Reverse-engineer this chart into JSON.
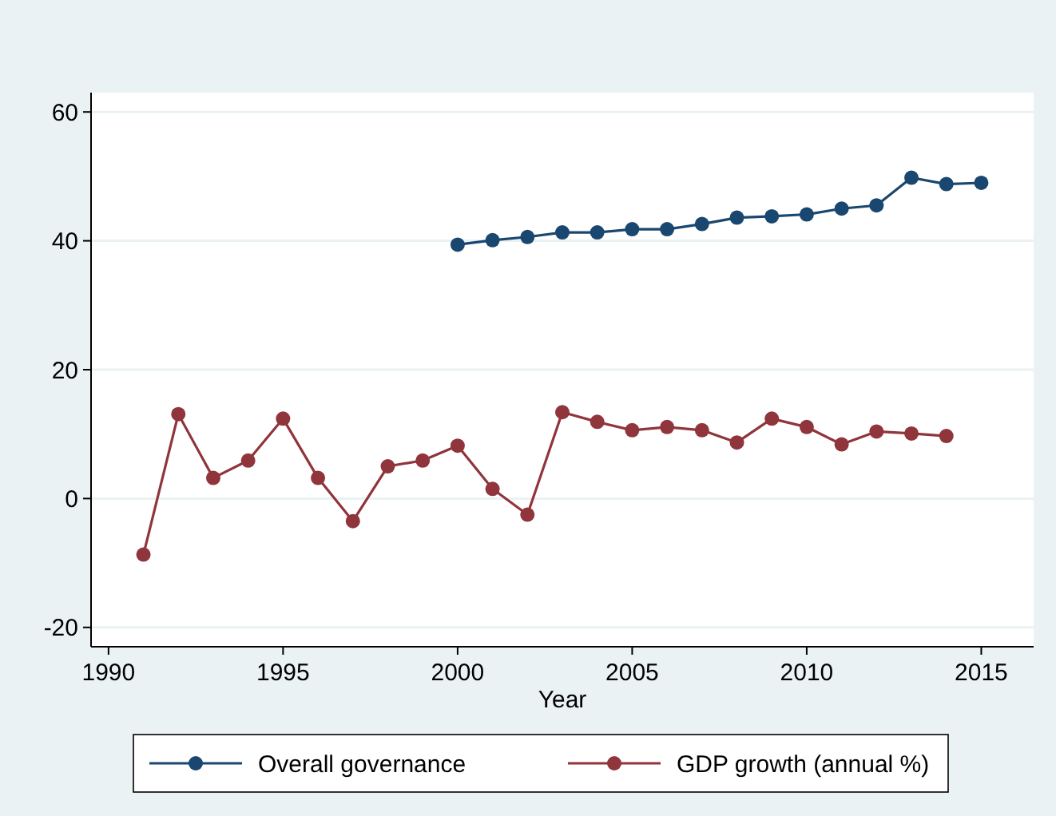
{
  "chart_data": {
    "type": "line",
    "xlabel": "Year",
    "xlim": [
      1989.5,
      2016.5
    ],
    "xticks": [
      1990,
      1995,
      2000,
      2005,
      2010,
      2015
    ],
    "ylim": [
      -23,
      63
    ],
    "yticks": [
      -20,
      0,
      20,
      40,
      60
    ],
    "grid": "y",
    "legend": "bottom",
    "marker": "circle",
    "line_style": "solid",
    "series": [
      {
        "name": "Overall governance",
        "color": "#1a476f",
        "x": [
          2000,
          2001,
          2002,
          2003,
          2004,
          2005,
          2006,
          2007,
          2008,
          2009,
          2010,
          2011,
          2012,
          2013,
          2014,
          2015
        ],
        "values": [
          39.4,
          40.1,
          40.6,
          41.3,
          41.3,
          41.8,
          41.8,
          42.6,
          43.6,
          43.8,
          44.1,
          45.0,
          45.5,
          49.8,
          48.8,
          49.0
        ]
      },
      {
        "name": "GDP growth (annual %)",
        "color": "#90353b",
        "x": [
          1991,
          1992,
          1993,
          1994,
          1995,
          1996,
          1997,
          1998,
          1999,
          2000,
          2001,
          2002,
          2003,
          2004,
          2005,
          2006,
          2007,
          2008,
          2009,
          2010,
          2011,
          2012,
          2013,
          2014
        ],
        "values": [
          -8.7,
          13.1,
          3.2,
          5.9,
          12.4,
          3.2,
          -3.5,
          5.0,
          5.9,
          8.2,
          1.5,
          -2.5,
          13.4,
          11.9,
          10.6,
          11.1,
          10.6,
          8.7,
          12.4,
          11.1,
          8.4,
          10.4,
          10.1,
          9.7
        ]
      }
    ]
  }
}
